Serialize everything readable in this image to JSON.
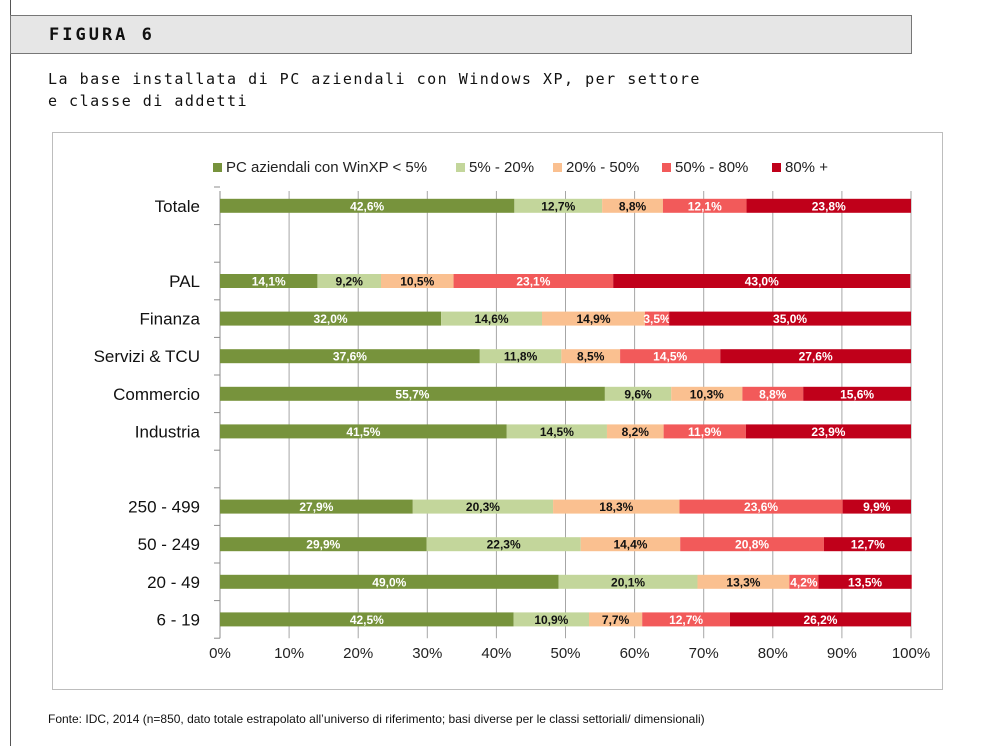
{
  "header": {
    "label": "FIGURA 6"
  },
  "subtitle": {
    "line1": "La base installata di PC aziendali con Windows XP, per settore",
    "line2": "e classe di addetti"
  },
  "source": "Fonte: IDC, 2014 (n=850, dato totale estrapolato all’universo di riferimento; basi diverse per le classi  settoriali/ dimensionali)",
  "chart_data": {
    "type": "bar",
    "orientation": "horizontal",
    "stacked": "percent",
    "title": "",
    "xlabel": "",
    "ylabel": "",
    "xlim": [
      0,
      100
    ],
    "x_ticks": [
      "0%",
      "10%",
      "20%",
      "30%",
      "40%",
      "50%",
      "60%",
      "70%",
      "80%",
      "90%",
      "100%"
    ],
    "legend_position": "top",
    "grid": "vertical",
    "categories": [
      "Totale",
      "",
      "PAL",
      "Finanza",
      "Servizi & TCU",
      "Commercio",
      "Industria",
      "",
      "250 - 499",
      "50 - 249",
      "20 - 49",
      "6 - 19"
    ],
    "series": [
      {
        "name": "PC aziendali con WinXP < 5%",
        "color": "#77933c",
        "label_color": "#ffffff",
        "values": [
          42.6,
          null,
          14.1,
          32.0,
          37.6,
          55.7,
          41.5,
          null,
          27.9,
          29.9,
          49.0,
          42.5
        ],
        "labels": [
          "42,6%",
          "",
          "14,1%",
          "32,0%",
          "37,6%",
          "55,7%",
          "41,5%",
          "",
          "27,9%",
          "29,9%",
          "49,0%",
          "42,5%"
        ]
      },
      {
        "name": "5% - 20%",
        "color": "#c3d69b",
        "label_color": "#111111",
        "values": [
          12.7,
          null,
          9.2,
          14.6,
          11.8,
          9.6,
          14.5,
          null,
          20.3,
          22.3,
          20.1,
          10.9
        ],
        "labels": [
          "12,7%",
          "",
          "9,2%",
          "14,6%",
          "11,8%",
          "9,6%",
          "14,5%",
          "",
          "20,3%",
          "22,3%",
          "20,1%",
          "10,9%"
        ]
      },
      {
        "name": "20% - 50%",
        "color": "#fac090",
        "label_color": "#111111",
        "values": [
          8.8,
          null,
          10.5,
          14.9,
          8.5,
          10.3,
          8.2,
          null,
          18.3,
          14.4,
          13.3,
          7.7
        ],
        "labels": [
          "8,8%",
          "",
          "10,5%",
          "14,9%",
          "8,5%",
          "10,3%",
          "8,2%",
          "",
          "18,3%",
          "14,4%",
          "13,3%",
          "7,7%"
        ]
      },
      {
        "name": "50% - 80%",
        "color": "#f25a5a",
        "label_color": "#ffffff",
        "values": [
          12.1,
          null,
          23.1,
          3.5,
          14.5,
          8.8,
          11.9,
          null,
          23.6,
          20.8,
          4.2,
          12.7
        ],
        "labels": [
          "12,1%",
          "",
          "23,1%",
          "3,5%",
          "14,5%",
          "8,8%",
          "11,9%",
          "",
          "23,6%",
          "20,8%",
          "4,2%",
          "12,7%"
        ]
      },
      {
        "name": "80% +",
        "color": "#c0001a",
        "label_color": "#ffffff",
        "values": [
          23.8,
          null,
          43.0,
          35.0,
          27.6,
          15.6,
          23.9,
          null,
          9.9,
          12.7,
          13.5,
          26.2
        ],
        "labels": [
          "23,8%",
          "",
          "43,0%",
          "35,0%",
          "27,6%",
          "15,6%",
          "23,9%",
          "",
          "9,9%",
          "12,7%",
          "13,5%",
          "26,2%"
        ]
      }
    ]
  }
}
